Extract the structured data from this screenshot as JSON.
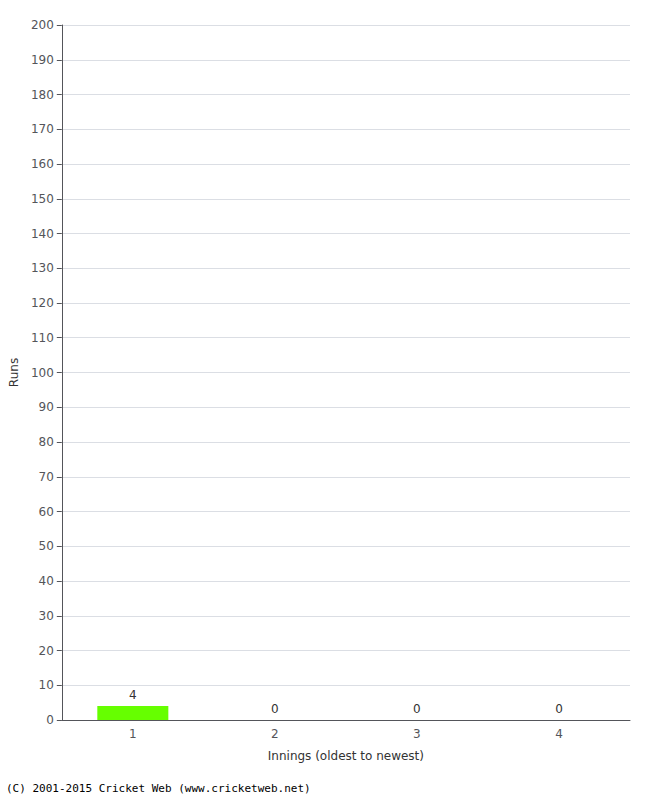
{
  "chart_data": {
    "type": "bar",
    "categories": [
      1,
      2,
      3,
      4
    ],
    "values": [
      4,
      0,
      0,
      0
    ],
    "color": "#66ff00",
    "xlabel": "Innings (oldest to newest)",
    "ylabel": "Runs",
    "ylim": [
      0,
      200
    ],
    "yticks": [
      0,
      10,
      20,
      30,
      40,
      50,
      60,
      70,
      80,
      90,
      100,
      110,
      120,
      130,
      140,
      150,
      160,
      170,
      180,
      190,
      200
    ],
    "grid": true,
    "data_labels": true,
    "footer": "(C) 2001-2015 Cricket Web (www.cricketweb.net)"
  }
}
